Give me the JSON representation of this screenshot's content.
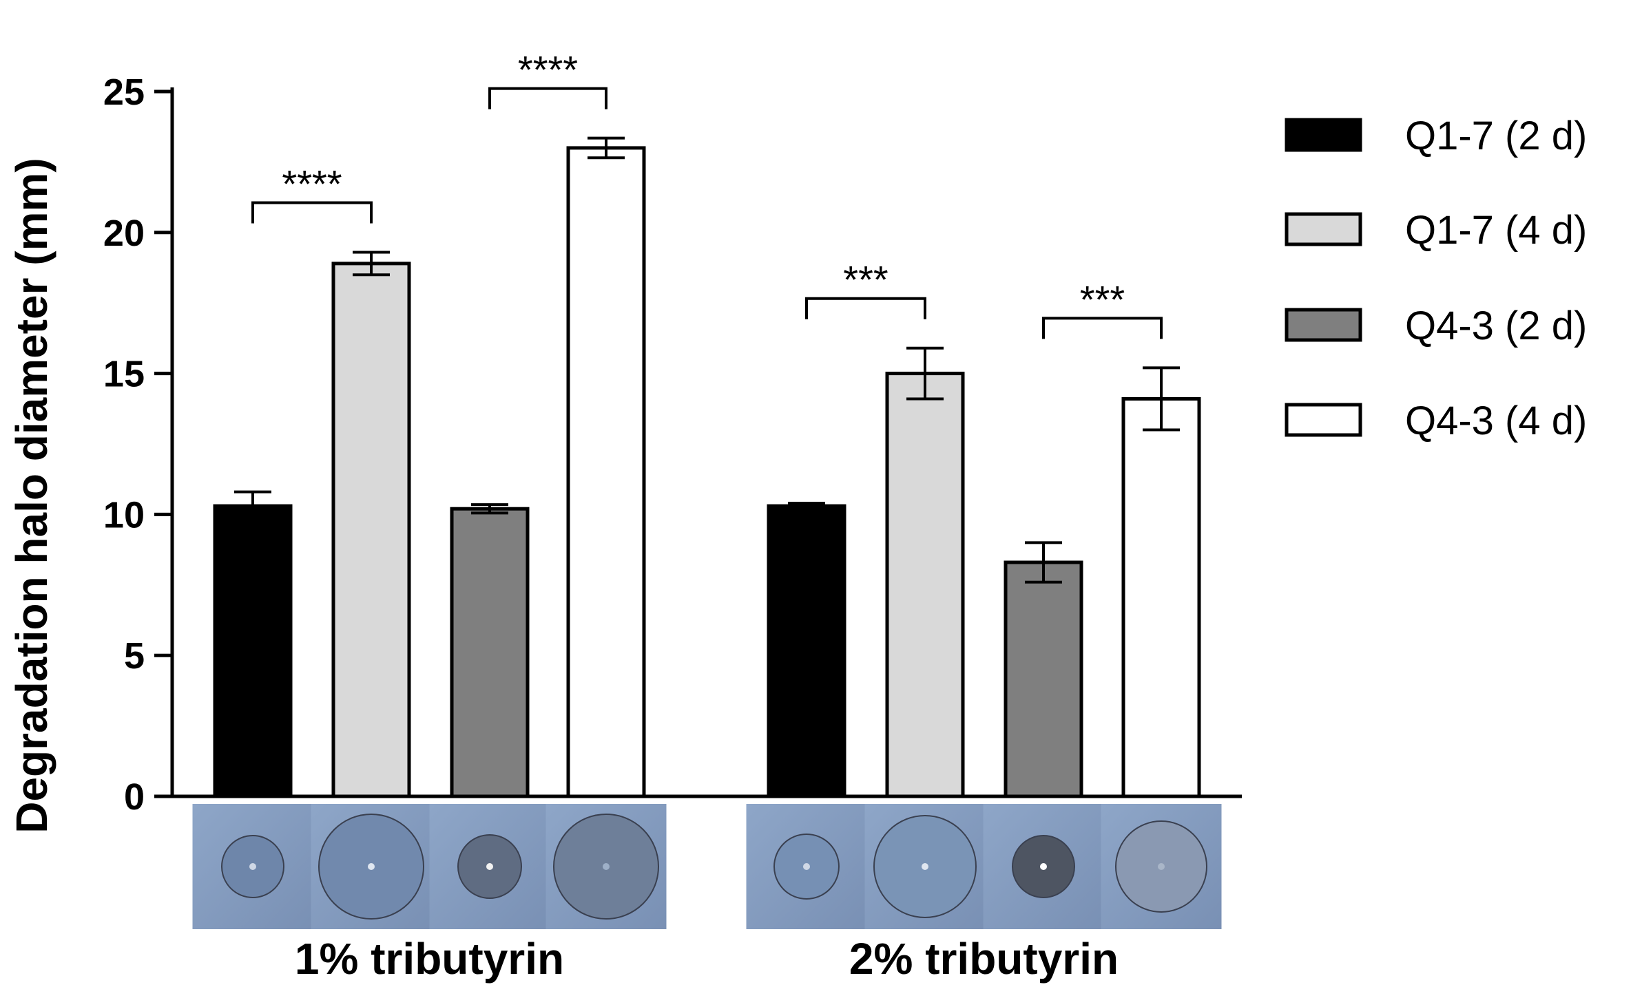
{
  "chart_data": {
    "type": "bar",
    "ylabel": "Degradation halo diameter (mm)",
    "xlabel": "",
    "ylim": [
      0,
      25
    ],
    "yticks": [
      0,
      5,
      10,
      15,
      20,
      25
    ],
    "grid": false,
    "legend_position": "right",
    "categories": [
      "1% tributyrin",
      "2% tributyrin"
    ],
    "series": [
      {
        "name": "Q1-7 (2 d)",
        "color": "#000000",
        "values": [
          10.3,
          10.3
        ],
        "errors": [
          0.5,
          0.1
        ]
      },
      {
        "name": "Q1-7 (4 d)",
        "color": "#d9d9d9",
        "values": [
          18.9,
          15.0
        ],
        "errors": [
          0.4,
          0.9
        ]
      },
      {
        "name": "Q4-3 (2 d)",
        "color": "#7f7f7f",
        "values": [
          10.2,
          8.3
        ],
        "errors": [
          0.15,
          0.7
        ]
      },
      {
        "name": "Q4-3 (4 d)",
        "color": "#ffffff",
        "values": [
          23.0,
          14.1
        ],
        "errors": [
          0.35,
          1.1
        ]
      }
    ],
    "significance": [
      {
        "group": 0,
        "from_series": 0,
        "to_series": 1,
        "label": "****"
      },
      {
        "group": 0,
        "from_series": 2,
        "to_series": 3,
        "label": "****"
      },
      {
        "group": 1,
        "from_series": 0,
        "to_series": 1,
        "label": "***"
      },
      {
        "group": 1,
        "from_series": 2,
        "to_series": 3,
        "label": "***"
      }
    ]
  },
  "plate_photos": [
    [
      "plate-q1-7-2d-1pct",
      "plate-q1-7-4d-1pct",
      "plate-q4-3-2d-1pct",
      "plate-q4-3-4d-1pct"
    ],
    [
      "plate-q1-7-2d-2pct",
      "plate-q1-7-4d-2pct",
      "plate-q4-3-2d-2pct",
      "plate-q4-3-4d-2pct"
    ]
  ]
}
